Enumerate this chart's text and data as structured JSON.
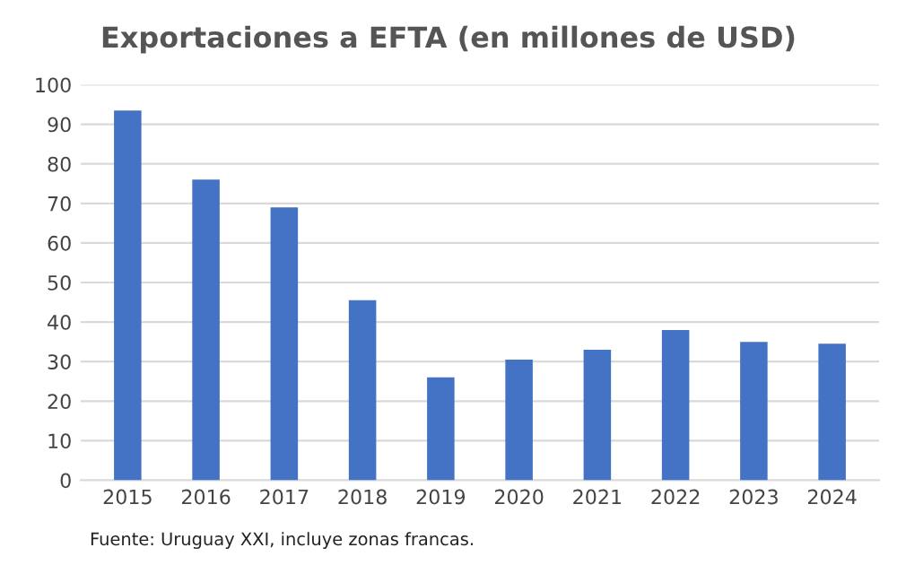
{
  "chart_data": {
    "type": "bar",
    "title": "Exportaciones a EFTA (en millones de USD)",
    "categories": [
      "2015",
      "2016",
      "2017",
      "2018",
      "2019",
      "2020",
      "2021",
      "2022",
      "2023",
      "2024"
    ],
    "values": [
      93.5,
      76,
      69,
      45.5,
      26,
      30.5,
      33,
      38,
      35,
      34.5
    ],
    "color": "#4472c4",
    "ylim": [
      0,
      100
    ],
    "yticks": [
      0,
      10,
      20,
      30,
      40,
      50,
      60,
      70,
      80,
      90,
      100
    ],
    "grid": "y",
    "annotations": [
      "Fuente: Uruguay XXI, incluye zonas francas."
    ]
  }
}
